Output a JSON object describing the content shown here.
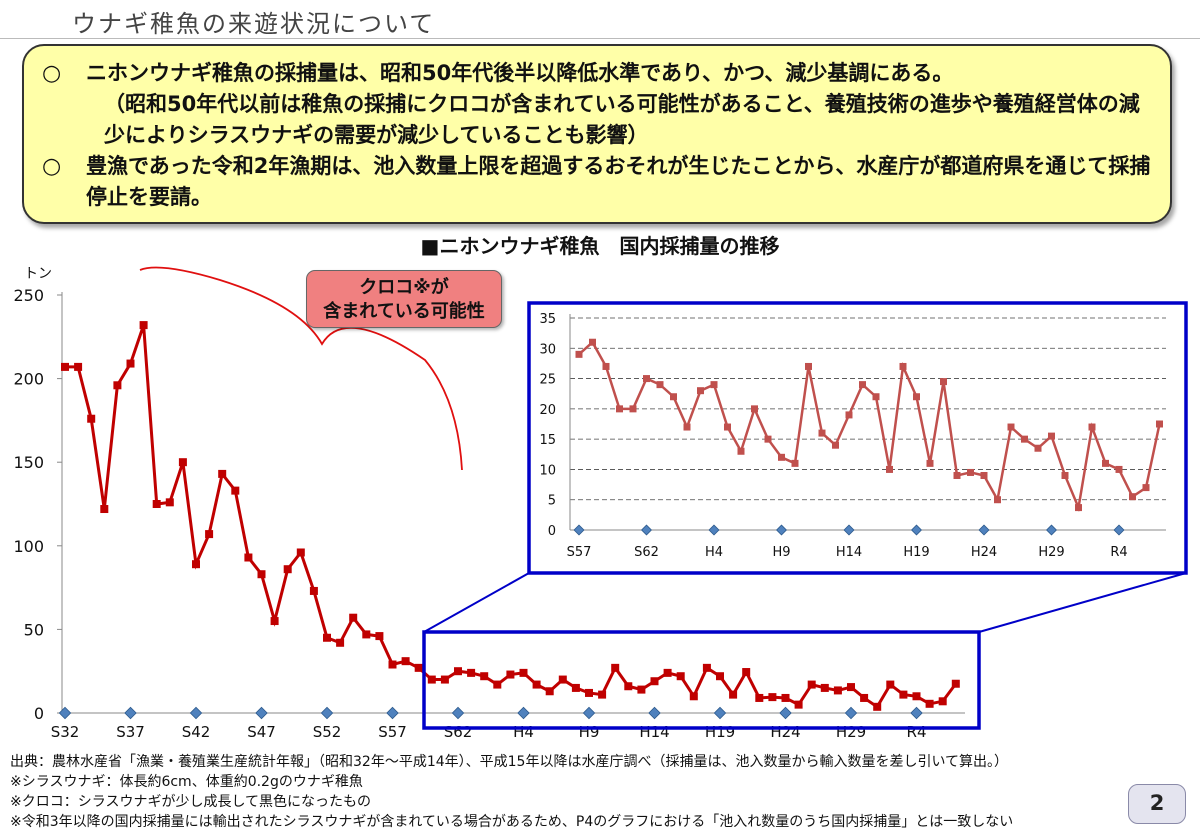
{
  "page": {
    "title": "ウナギ稚魚の来遊状況について",
    "page_number": "2"
  },
  "summary": {
    "bullet_mark": "○",
    "bullet1": "ニホンウナギ稚魚の採捕量は、昭和50年代後半以降低水準であり、かつ、減少基調にある。",
    "note1": "（昭和50年代以前は稚魚の採捕にクロコが含まれている可能性があること、養殖技術の進歩や養殖経営体の減少によりシラスウナギの需要が減少していることも影響）",
    "bullet2": "豊漁であった令和2年漁期は、池入数量上限を超過するおそれが生じたことから、水産庁が都道府県を通じて採捕停止を要請。"
  },
  "callout": {
    "line1": "クロコ※が",
    "line2": "含まれている可能性"
  },
  "sources": {
    "line1": "出典：農林水産省「漁業・養殖業生産統計年報」（昭和32年～平成14年）、平成15年以降は水産庁調べ（採捕量は、池入数量から輸入数量を差し引いて算出。）",
    "line2": "※シラスウナギ：体長約6cm、体重約0.2gのウナギ稚魚",
    "line3": "※クロコ：シラスウナギが少し成長して黒色になったもの",
    "line4": "※令和3年以降の国内採捕量には輸出されたシラスウナギが含まれている場合があるため、P4のグラフにおける「池入れ数量のうち国内採捕量」とは一致しない"
  },
  "colors": {
    "main_series": "#c00000",
    "inset_series": "#c0504d",
    "zoom_box": "#0000c8",
    "marker_diamond": "#4f81bd",
    "brace": "#e01010"
  },
  "chart_data": [
    {
      "type": "line",
      "title": "■ニホンウナギ稚魚　国内採捕量の推移",
      "ylabel": "トン",
      "ylim": [
        0,
        250
      ],
      "yticks": [
        0,
        50,
        100,
        150,
        200,
        250
      ],
      "x_labels": [
        "S32",
        "S37",
        "S42",
        "S47",
        "S52",
        "S57",
        "S62",
        "H4",
        "H9",
        "H14",
        "H19",
        "H24",
        "H29",
        "R4"
      ],
      "grid": false,
      "series": [
        {
          "values": [
            207,
            207,
            176,
            122,
            196,
            209,
            232,
            125,
            126,
            150,
            89,
            107,
            143,
            133,
            93,
            83,
            55,
            86,
            96,
            73,
            45,
            42,
            57,
            47,
            46,
            29,
            31,
            27,
            20,
            20,
            25,
            24,
            22,
            17,
            23,
            24,
            17,
            13,
            20,
            15,
            12,
            11,
            27,
            16,
            14,
            19,
            24,
            22,
            10,
            27,
            22,
            11,
            24.5,
            9,
            9.5,
            9,
            5,
            17,
            15,
            13.5,
            15.5,
            9,
            3.7,
            17,
            11,
            10,
            5.5,
            7,
            17.5
          ]
        }
      ]
    },
    {
      "type": "line",
      "ylim": [
        0,
        35
      ],
      "yticks": [
        0,
        5,
        10,
        15,
        20,
        25,
        30,
        35
      ],
      "x_labels": [
        "S57",
        "S62",
        "H4",
        "H9",
        "H14",
        "H19",
        "H24",
        "H29",
        "R4"
      ],
      "grid": true,
      "series": [
        {
          "values": [
            29,
            31,
            27,
            20,
            20,
            25,
            24,
            22,
            17,
            23,
            24,
            17,
            13,
            20,
            15,
            12,
            11,
            27,
            16,
            14,
            19,
            24,
            22,
            10,
            27,
            22,
            11,
            24.5,
            9,
            9.5,
            9,
            5,
            17,
            15,
            13.5,
            15.5,
            9,
            3.7,
            17,
            11,
            10,
            5.5,
            7,
            17.5
          ]
        }
      ]
    }
  ]
}
